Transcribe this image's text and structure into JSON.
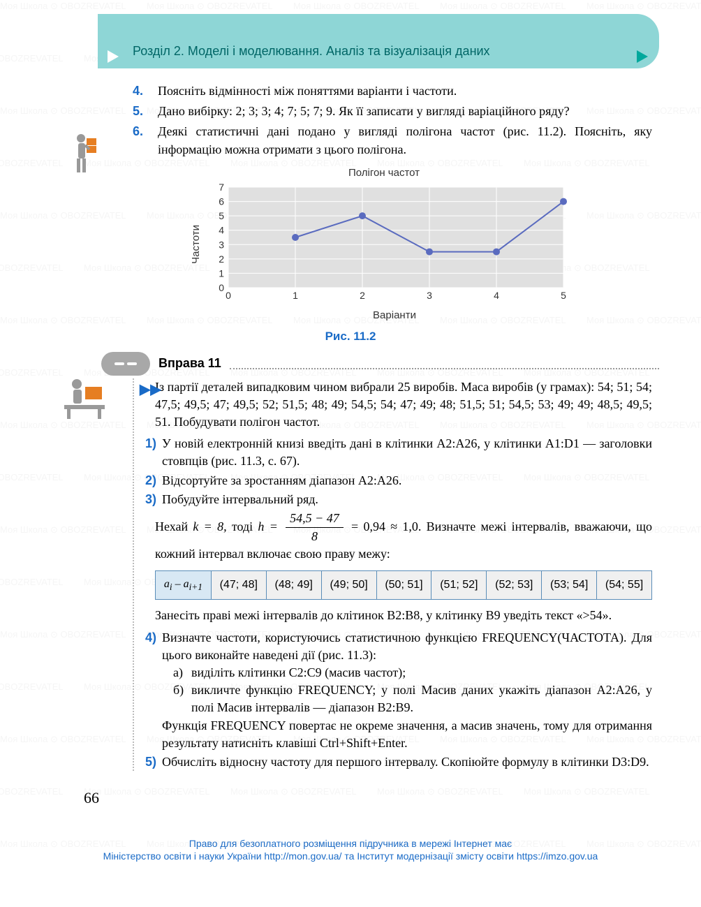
{
  "header": {
    "section_title": "Розділ 2. Моделі і моделювання. Аналіз та візуалізація даних",
    "tri_color": "#00a89c"
  },
  "questions": [
    {
      "num": "4.",
      "text": "Поясніть відмінності між поняттями варіанти і частоти."
    },
    {
      "num": "5.",
      "text": "Дано вибірку: 2; 3; 3; 4; 7; 5; 7; 9. Як її записати у вигляді ва­ріаційного ряду?"
    },
    {
      "num": "6.",
      "text": "Деякі статистичні дані подано у вигляді полігона частот (рис. 11.2). Поясніть, яку інформацію можна отримати з цього полігона."
    }
  ],
  "chart": {
    "title": "Полігон частот",
    "ylabel": "Частоти",
    "xlabel": "Варіанти",
    "caption": "Рис. 11.2",
    "type": "line",
    "x_values": [
      1,
      2,
      3,
      4,
      5
    ],
    "y_values": [
      3.5,
      5,
      2.5,
      2.5,
      6
    ],
    "xlim": [
      0,
      5
    ],
    "ylim": [
      0,
      7
    ],
    "xticks": [
      0,
      1,
      2,
      3,
      4,
      5
    ],
    "yticks": [
      0,
      1,
      2,
      3,
      4,
      5,
      6,
      7
    ],
    "plot_bg": "#e0e0e0",
    "grid_color": "#ffffff",
    "line_color": "#5a6bbf",
    "marker_fill": "#5a6bbf",
    "marker_size": 5,
    "line_width": 2,
    "tick_fontsize": 14,
    "axis_color": "#666666"
  },
  "exercise": {
    "title": "Вправа 11",
    "intro": "Із партії деталей випадковим чином вибрали 25 виробів. Маса виробів (у грамах): 54; 51; 54; 47,5; 49,5; 47; 49,5; 52; 51,5; 48; 49; 54,5; 54; 47; 49; 48; 51,5; 51; 54,5; 53; 49; 49; 48,5; 49,5; 51. Побудувати полігон частот.",
    "steps": [
      {
        "num": "1)",
        "text": "У новій електронній книзі введіть дані в клітинки А2:А26, у клі­тинки A1:D1 — заголовки стовпців (рис. 11.3, с. 67)."
      },
      {
        "num": "2)",
        "text": "Відсортуйте за зростанням діапазон А2:А26."
      },
      {
        "num": "3)",
        "text": "Побудуйте інтервальний ряд."
      }
    ],
    "formula": {
      "prefix": "Нехай ",
      "k_eq": "k = 8,",
      "mid": " тоді ",
      "h_eq": "h =",
      "frac_top": "54,5 − 47",
      "frac_bot": "8",
      "result": " = 0,94 ≈ 1,0.",
      "suffix": " Визначте межі інтер­валів, вважаючи, що кожний інтервал включає свою праву межу:"
    },
    "interval_table": {
      "header_cell": "a_i – a_{i+1}",
      "cells": [
        "(47; 48]",
        "(48; 49]",
        "(49; 50]",
        "(50; 51]",
        "(51; 52]",
        "(52; 53]",
        "(53; 54]",
        "(54; 55]"
      ]
    },
    "after_table": "Занесіть праві межі інтервалів до клітинок В2:В8, у клітинку В9 уведіть текст «>54».",
    "step4": {
      "num": "4)",
      "text": "Визначте частоти, користуючись статистичною функцією FREQUENCY(ЧАСТОТА). Для цього виконайте наведені дії (рис. 11.3):",
      "sub": [
        {
          "letter": "а)",
          "text": "виділіть клітинки С2:С9 (масив частот);"
        },
        {
          "letter": "б)",
          "text": "викличте функцію FREQUENCY; у полі Масив даних укажіть діа­пазон А2:А26, у полі Масив інтервалів — діапазон В2:В9."
        }
      ],
      "tail": "Функція FREQUENCY повертає не окреме значення, а масив значень, тому для отримання результату натисніть клавіші Ctrl+Shift+Enter."
    },
    "step5": {
      "num": "5)",
      "text": "Обчисліть відносну частоту для першого інтервалу. Скопіюйте формулу в клітинки D3:D9."
    }
  },
  "page_num": "66",
  "footer": {
    "line1": "Право для безоплатного розміщення підручника в мережі Інтернет має",
    "line2": "Міністерство освіти і науки України http://mon.gov.ua/ та Інститут модернізації змісту освіти https://imzo.gov.ua"
  },
  "watermark_text": "Моя Школа ⊙ OBOZREVATEL"
}
